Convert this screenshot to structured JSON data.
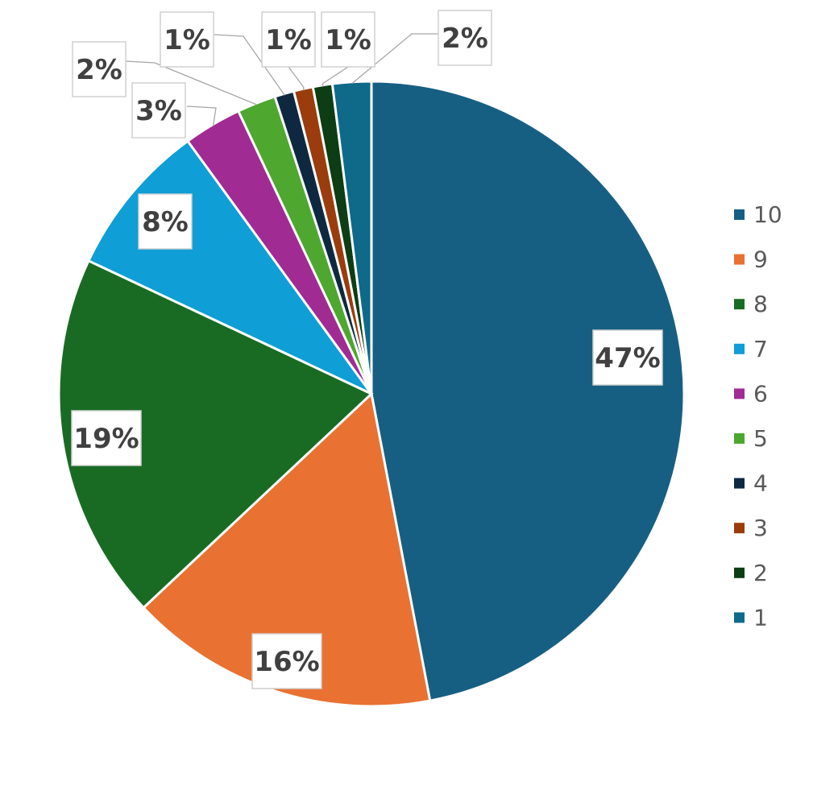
{
  "chart_data": {
    "type": "pie",
    "start_angle_deg": 0,
    "direction": "clockwise",
    "legend_position": "right",
    "slices": [
      {
        "label": "10",
        "value": 47,
        "display": "47%",
        "color": "#175f82"
      },
      {
        "label": "9",
        "value": 16,
        "display": "16%",
        "color": "#e97132"
      },
      {
        "label": "8",
        "value": 19,
        "display": "19%",
        "color": "#196b24"
      },
      {
        "label": "7",
        "value": 8,
        "display": "8%",
        "color": "#0f9ed5"
      },
      {
        "label": "6",
        "value": 3,
        "display": "3%",
        "color": "#a02b93"
      },
      {
        "label": "5",
        "value": 2,
        "display": "2%",
        "color": "#4ea72e"
      },
      {
        "label": "4",
        "value": 1,
        "display": "1%",
        "color": "#0e2841"
      },
      {
        "label": "3",
        "value": 1,
        "display": "1%",
        "color": "#9a3c0d"
      },
      {
        "label": "2",
        "value": 1,
        "display": "1%",
        "color": "#0c3d14"
      },
      {
        "label": "1",
        "value": 2,
        "display": "2%",
        "color": "#0f6a8a"
      }
    ]
  }
}
